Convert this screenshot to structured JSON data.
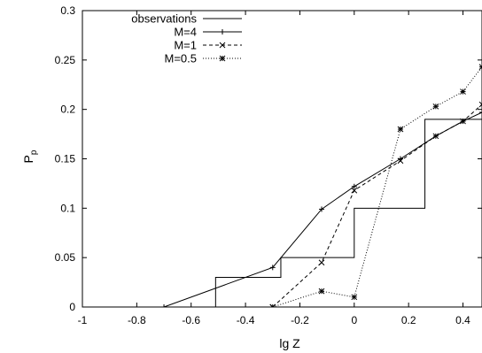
{
  "chart_data": {
    "type": "line",
    "xlabel": "lg Z",
    "ylabel_main": "P",
    "ylabel_sub": "p",
    "xlim": [
      -1,
      0.47
    ],
    "ylim": [
      0,
      0.3
    ],
    "xticks": [
      -1,
      -0.8,
      -0.6,
      -0.4,
      -0.2,
      0,
      0.2,
      0.4
    ],
    "xtick_labels": [
      "-1",
      "-0.8",
      "-0.6",
      "-0.4",
      "-0.2",
      "0",
      "0.2",
      "0.4"
    ],
    "yticks": [
      0,
      0.05,
      0.1,
      0.15,
      0.2,
      0.25,
      0.3
    ],
    "ytick_labels": [
      "0",
      "0.05",
      "0.1",
      "0.15",
      "0.2",
      "0.25",
      "0.3"
    ],
    "grid": false,
    "legend_position": "top-left",
    "series": [
      {
        "name": "observations",
        "style": "step",
        "marker": "none",
        "dash": "solid",
        "points": [
          [
            -0.7,
            0
          ],
          [
            -0.51,
            0
          ],
          [
            -0.51,
            0.03
          ],
          [
            -0.27,
            0.03
          ],
          [
            -0.27,
            0.05
          ],
          [
            0,
            0.05
          ],
          [
            0,
            0.1
          ],
          [
            0.26,
            0.1
          ],
          [
            0.26,
            0.19
          ],
          [
            0.47,
            0.19
          ]
        ]
      },
      {
        "name": "M=4",
        "style": "line",
        "marker": "plus",
        "dash": "solid",
        "points": [
          [
            -0.7,
            0
          ],
          [
            -0.3,
            0.04
          ],
          [
            -0.12,
            0.099
          ],
          [
            0,
            0.122
          ],
          [
            0.17,
            0.15
          ],
          [
            0.3,
            0.173
          ],
          [
            0.4,
            0.188
          ],
          [
            0.47,
            0.197
          ]
        ]
      },
      {
        "name": "M=1",
        "style": "line",
        "marker": "x",
        "dash": "dashed",
        "points": [
          [
            -0.3,
            0
          ],
          [
            -0.12,
            0.045
          ],
          [
            0,
            0.118
          ],
          [
            0.17,
            0.148
          ],
          [
            0.3,
            0.173
          ],
          [
            0.4,
            0.188
          ],
          [
            0.47,
            0.205
          ]
        ]
      },
      {
        "name": "M=0.5",
        "style": "line",
        "marker": "star",
        "dash": "dotted",
        "points": [
          [
            -0.3,
            0
          ],
          [
            -0.12,
            0.016
          ],
          [
            0,
            0.01
          ],
          [
            0.17,
            0.18
          ],
          [
            0.3,
            0.203
          ],
          [
            0.4,
            0.218
          ],
          [
            0.47,
            0.243
          ]
        ]
      }
    ]
  }
}
